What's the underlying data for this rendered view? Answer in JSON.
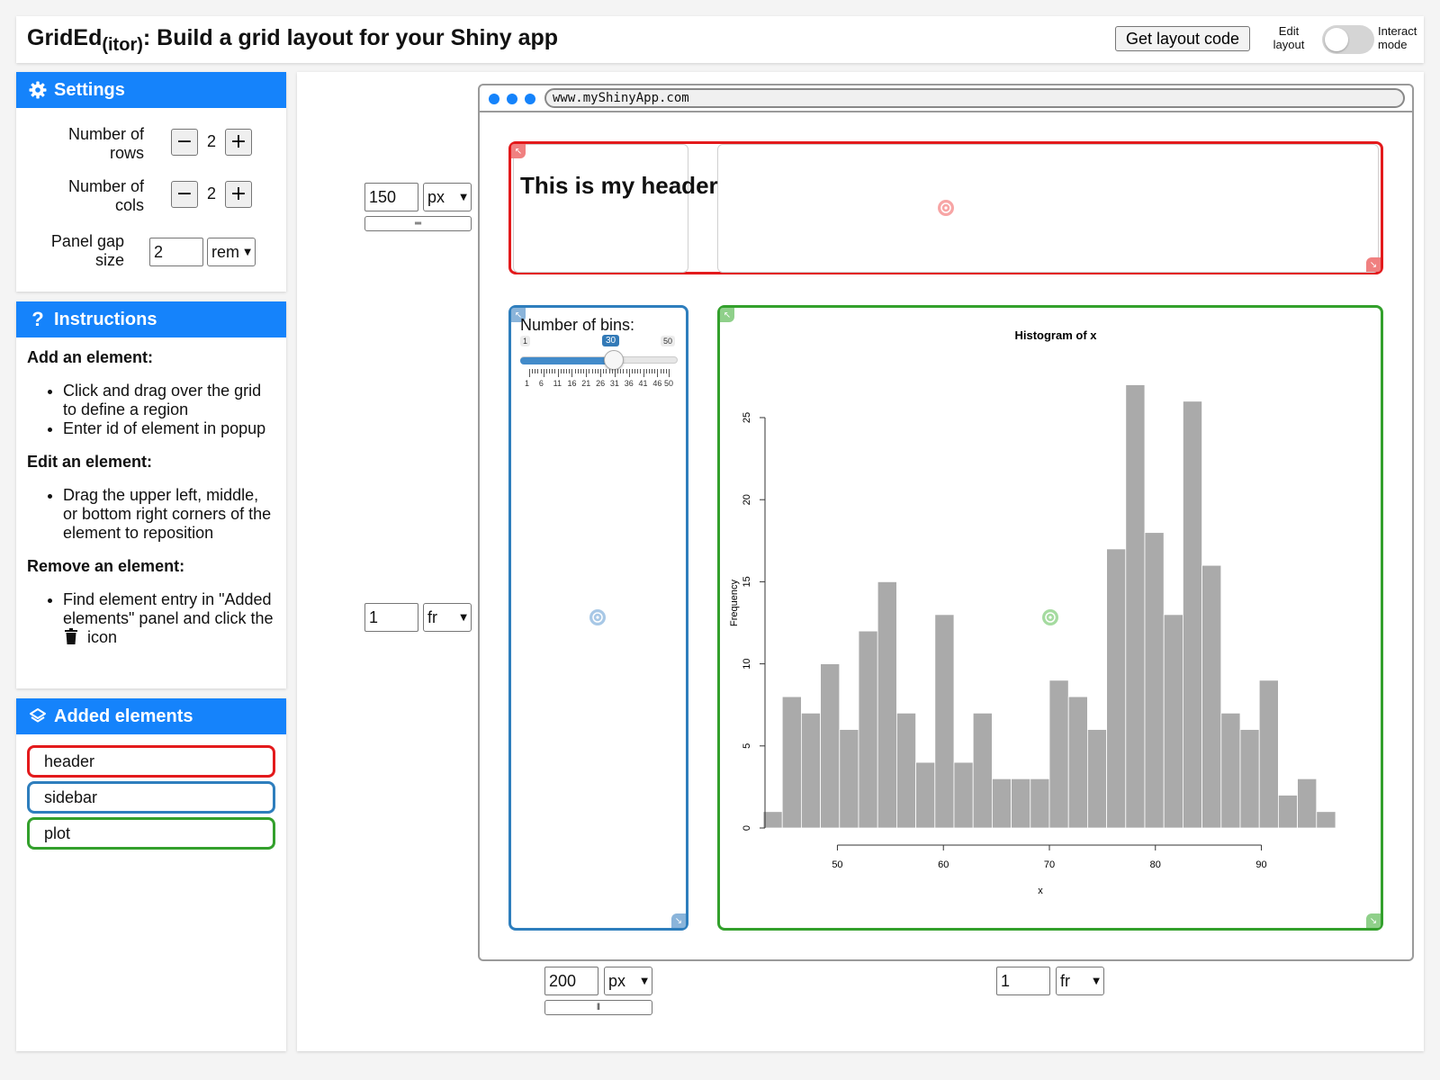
{
  "app": {
    "title_main": "GridEd",
    "title_sub": "(itor)",
    "title_rest": ": Build a grid layout for your Shiny app",
    "layout_code_button": "Get layout code",
    "mode_edit": "Edit layout",
    "mode_interact": "Interact mode",
    "accent_color": "#1583fb"
  },
  "settings": {
    "title": "Settings",
    "rows_label": "Number of rows",
    "rows_value": "2",
    "cols_label": "Number of cols",
    "cols_value": "2",
    "gap_label": "Panel gap size",
    "gap_value": "2",
    "gap_unit": "rem"
  },
  "instructions": {
    "title": "Instructions",
    "add_heading": "Add an element:",
    "add_items": [
      "Click and drag over the grid to define a region",
      "Enter id of element in popup"
    ],
    "edit_heading": "Edit an element:",
    "edit_items": [
      "Drag the upper left, middle, or bottom right corners of the element to reposition"
    ],
    "remove_heading": "Remove an element:",
    "remove_text_1": "Find element entry in \"Added elements\" panel and click the",
    "remove_text_2": "icon"
  },
  "added": {
    "title": "Added elements",
    "items": [
      {
        "label": "header",
        "color": "#e31a1c"
      },
      {
        "label": "sidebar",
        "color": "#2e7ebd"
      },
      {
        "label": "plot",
        "color": "#33a02c"
      }
    ]
  },
  "grid": {
    "row1_size": "150",
    "row1_unit": "px",
    "row2_size": "1",
    "row2_unit": "fr",
    "col1_size": "200",
    "col1_unit": "px",
    "col2_size": "1",
    "col2_unit": "fr"
  },
  "browser": {
    "url": "www.myShinyApp.com"
  },
  "app_preview": {
    "header_text": "This is my header",
    "slider_label": "Number of bins:",
    "slider_min": "1",
    "slider_max": "50",
    "slider_value": "30",
    "slider_ticks": [
      "1",
      "6",
      "11",
      "16",
      "21",
      "26",
      "31",
      "36",
      "41",
      "46",
      "50"
    ]
  },
  "chart_data": {
    "type": "bar",
    "title": "Histogram of x",
    "xlabel": "x",
    "ylabel": "Frequency",
    "bin_start": 43,
    "bin_width": 1.8,
    "values": [
      1,
      8,
      7,
      10,
      6,
      12,
      15,
      7,
      4,
      13,
      4,
      7,
      3,
      3,
      3,
      9,
      8,
      6,
      17,
      27,
      18,
      13,
      26,
      16,
      7,
      6,
      9,
      2,
      3,
      1
    ],
    "xlim": [
      43,
      97
    ],
    "ylim": [
      0,
      25
    ],
    "xticks": [
      "50",
      "60",
      "70",
      "80",
      "90"
    ],
    "yticks": [
      "0",
      "5",
      "10",
      "15",
      "20",
      "25"
    ],
    "bar_color": "#aaaaaa"
  }
}
